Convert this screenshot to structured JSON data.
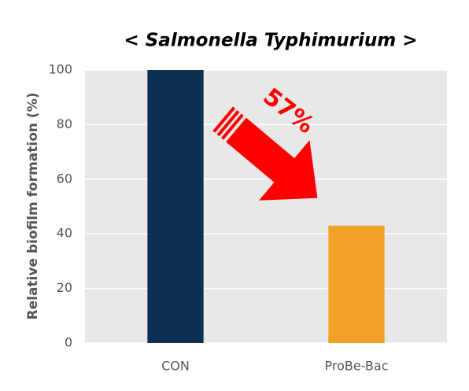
{
  "chart_data": {
    "type": "bar",
    "title": "< Salmonella Typhimurium >",
    "y_label": "Relative biofilm formation (%)",
    "categories": [
      "CON",
      "ProBe-Bac"
    ],
    "values": [
      100,
      43
    ],
    "colors": [
      "#0b3050",
      "#f0a226"
    ],
    "ylim": [
      0,
      100
    ],
    "yticks": [
      0,
      20,
      40,
      60,
      80,
      100
    ],
    "grid": true,
    "annotation": "57%"
  }
}
